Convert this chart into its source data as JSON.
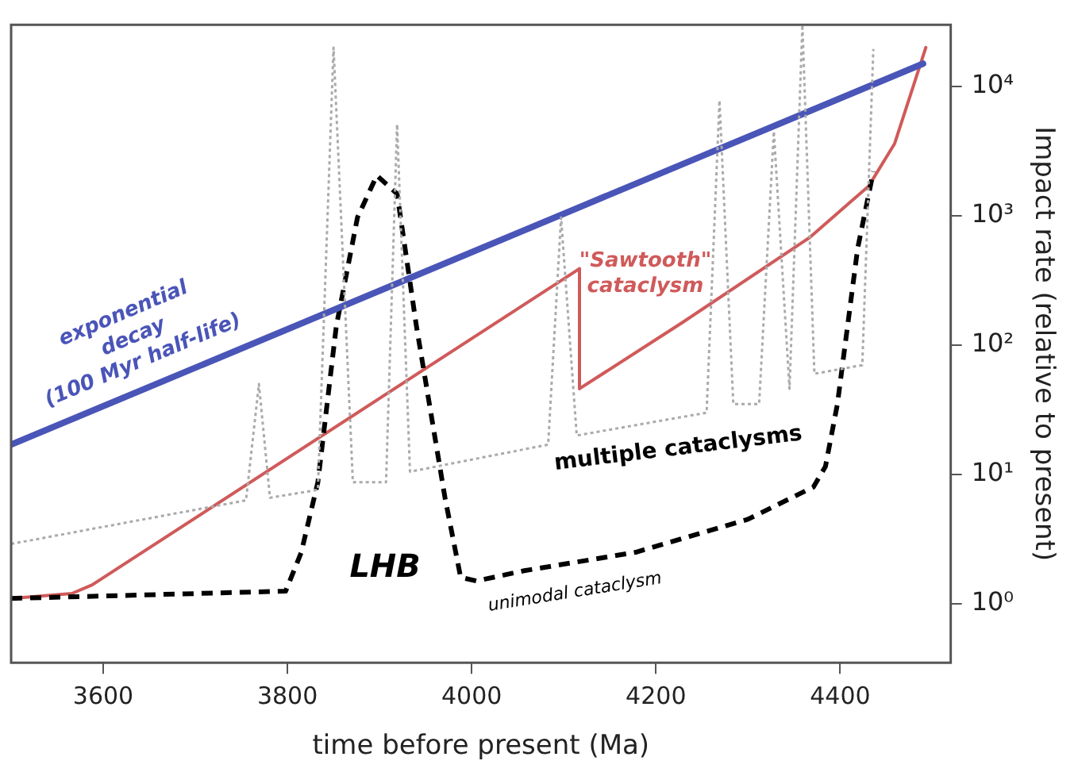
{
  "chart_data": {
    "type": "line",
    "xlabel": "time before present (Ma)",
    "ylabel": "Impact rate (relative to present)",
    "log": "y",
    "grid": false,
    "marker": "none",
    "legend": false,
    "xlim": [
      3500,
      4520
    ],
    "xticks": [
      3600,
      3800,
      4000,
      4200,
      4400
    ],
    "ylim": [
      0.35,
      30000
    ],
    "yticks": [
      {
        "value": 1,
        "label": "10⁰"
      },
      {
        "value": 10,
        "label": "10¹"
      },
      {
        "value": 100,
        "label": "10²"
      },
      {
        "value": 1000,
        "label": "10³"
      },
      {
        "value": 10000,
        "label": "10⁴"
      }
    ],
    "series": [
      {
        "color": "#aaaaaa",
        "line_style": "dotted",
        "x": [
          3500,
          3755,
          3769,
          3781,
          3833,
          3850,
          3871,
          3907,
          3919,
          3933,
          4083,
          4097,
          4114,
          4255,
          4269,
          4284,
          4312,
          4328,
          4345,
          4359,
          4372,
          4424,
          4436
        ],
        "values": [
          2.9,
          6.3,
          50,
          6.6,
          7.6,
          20000,
          8.7,
          8.7,
          5100,
          10.5,
          17,
          970,
          20,
          30,
          7800,
          35,
          35,
          4500,
          46,
          30000,
          60,
          70,
          19500
        ]
      },
      {
        "color": "#4a55b8",
        "line_style": "solid",
        "x": [
          3500,
          4490
        ],
        "values": [
          17,
          15000
        ]
      },
      {
        "color": "#000000",
        "line_style": "dashed",
        "x": [
          3500,
          3798,
          3815,
          3833,
          3853,
          3876,
          3897,
          3919,
          3940,
          3971,
          3988,
          4005,
          4057,
          4178,
          4300,
          4371,
          4384,
          4397,
          4419,
          4436
        ],
        "values": [
          1.1,
          1.25,
          2.5,
          8.7,
          140,
          970,
          2050,
          1480,
          140,
          6.6,
          1.6,
          1.5,
          1.8,
          2.5,
          4.5,
          8,
          11.5,
          35,
          560,
          2200
        ]
      },
      {
        "color": "#d05a5a",
        "line_style": "solid",
        "x": [
          3500,
          3566,
          3588,
          4117,
          4117,
          4229,
          4367,
          4431,
          4459,
          4493
        ],
        "values": [
          1.1,
          1.2,
          1.4,
          390,
          46,
          150,
          680,
          1700,
          3600,
          20000
        ]
      }
    ],
    "annotations": [
      "exponential\ndecay\n(100 Myr half-life)",
      "\"Sawtooth\"\ncataclysm",
      "multiple cataclysms",
      "LHB",
      "unimodal cataclysm"
    ]
  }
}
